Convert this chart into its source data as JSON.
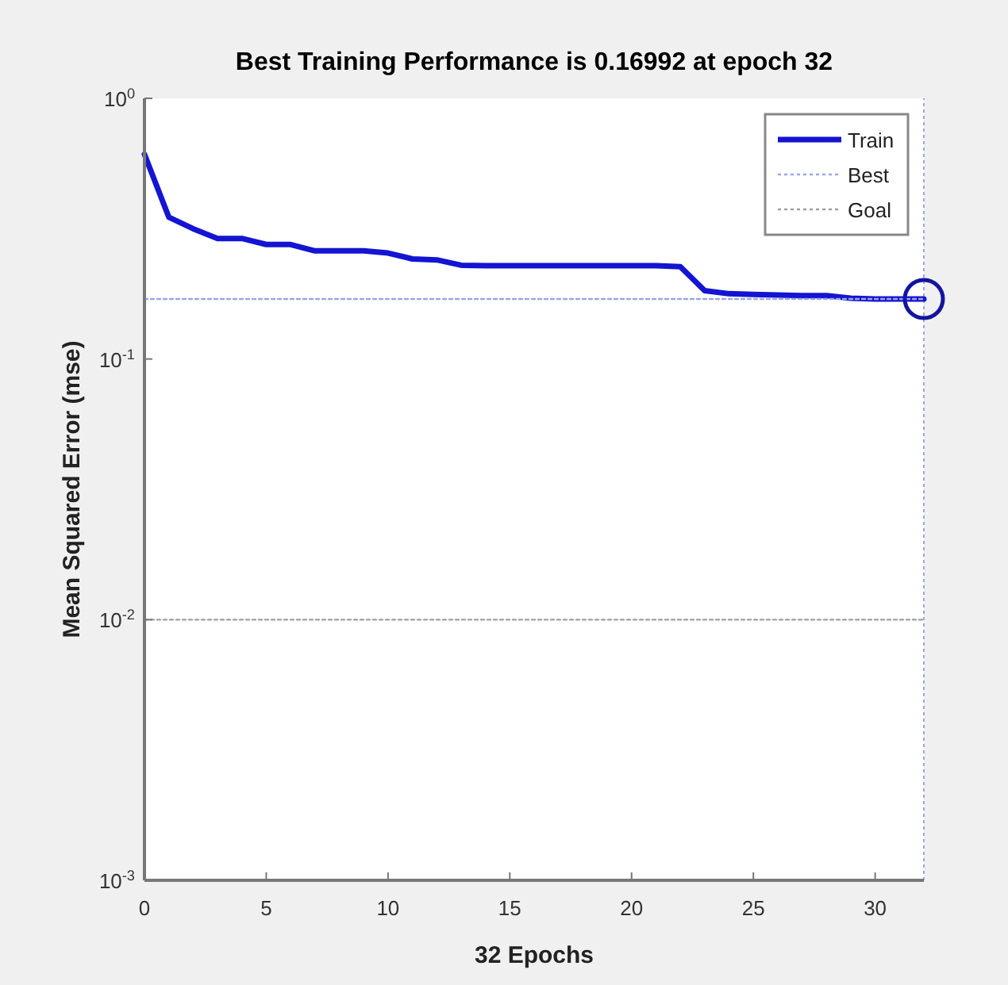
{
  "chart_data": {
    "type": "line",
    "title": "Best Training Performance is 0.16992 at epoch 32",
    "xlabel": "32 Epochs",
    "ylabel": "Mean Squared Error  (mse)",
    "log": "y",
    "xlim": [
      0,
      32
    ],
    "xticks": [
      0,
      5,
      10,
      15,
      20,
      25,
      30
    ],
    "ylim": [
      0.001,
      1
    ],
    "yticks": [
      {
        "value": 0.001,
        "label": "10$^{-3}$"
      },
      {
        "value": 0.01,
        "label": "10$^{-2}$"
      },
      {
        "value": 0.1,
        "label": "10$^{-1}$"
      },
      {
        "value": 1,
        "label": "10$^{0}$"
      }
    ],
    "legend": "top right",
    "grid": false,
    "series": [
      {
        "name": "Train",
        "color": "#1414d2",
        "line_style": "solid",
        "x": [
          0,
          1,
          2,
          3,
          4,
          5,
          6,
          7,
          8,
          9,
          10,
          11,
          12,
          13,
          14,
          15,
          16,
          17,
          18,
          19,
          20,
          21,
          22,
          23,
          24,
          25,
          26,
          27,
          28,
          29,
          30,
          31,
          32
        ],
        "values": [
          0.61,
          0.35,
          0.316,
          0.29,
          0.29,
          0.275,
          0.275,
          0.26,
          0.26,
          0.26,
          0.255,
          0.242,
          0.24,
          0.229,
          0.228,
          0.228,
          0.228,
          0.228,
          0.228,
          0.228,
          0.228,
          0.228,
          0.226,
          0.183,
          0.178,
          0.177,
          0.176,
          0.175,
          0.175,
          0.171,
          0.16992,
          0.16992,
          0.16992
        ]
      },
      {
        "name": "Best",
        "color": "#9aa6e8",
        "line_style": "dotted",
        "x": [
          0,
          32
        ],
        "values": [
          0.16992,
          0.16992
        ]
      },
      {
        "name": "Goal",
        "color": "#a0a0a0",
        "line_style": "dotted",
        "x": [
          0,
          32
        ],
        "values": [
          0.01,
          0.01
        ]
      },
      {
        "type": "scatter",
        "color": "#1414a0",
        "marker": "circle",
        "x": [
          32
        ],
        "values": [
          0.16992
        ]
      }
    ],
    "ref_lines": [
      {
        "axis": "x",
        "value": 32,
        "color": "#9aa6e8",
        "line_style": "dotted"
      }
    ]
  }
}
